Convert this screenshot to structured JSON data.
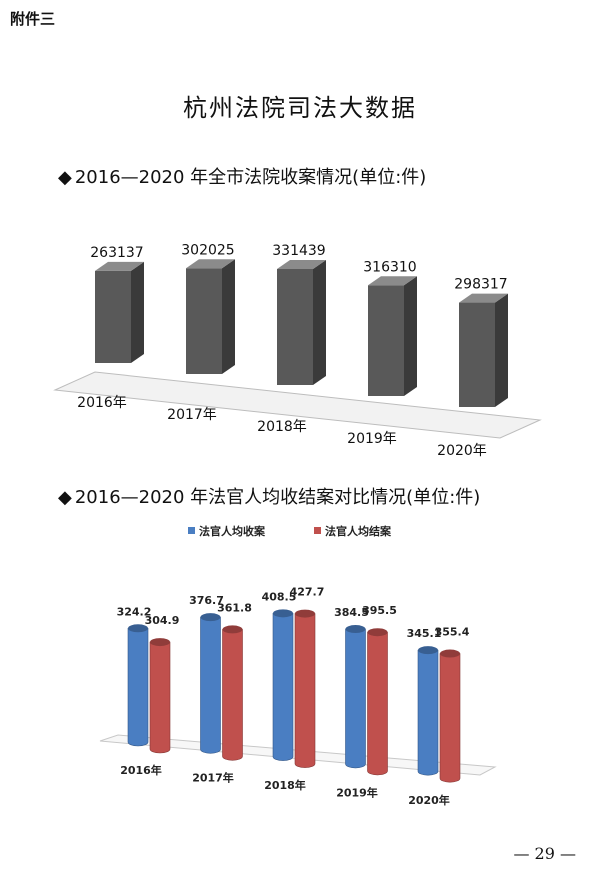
{
  "corner_label": "附件三",
  "page_title": "杭州法院司法大数据",
  "sections": [
    {
      "bullet": "◆",
      "heading": "2016—2020 年全市法院收案情况(单位:件)"
    },
    {
      "bullet": "◆",
      "heading": "2016—2020 年法官人均收结案对比情况(单位:件)"
    }
  ],
  "page_number": "— 29 —",
  "colors": {
    "gray_bar": "#595959",
    "blue_series": "#4a7ec2",
    "red_series": "#c0504d"
  },
  "chart_data": [
    {
      "type": "bar",
      "categories": [
        "2016年",
        "2017年",
        "2018年",
        "2019年",
        "2020年"
      ],
      "values": [
        263137,
        302025,
        331439,
        316310,
        298317
      ],
      "data_labels": [
        "263137",
        "302025",
        "331439",
        "316310",
        "298317"
      ],
      "title": "",
      "xlabel": "",
      "ylabel": "",
      "grid": false,
      "legend": "none"
    },
    {
      "type": "bar",
      "categories": [
        "2016年",
        "2017年",
        "2018年",
        "2019年",
        "2020年"
      ],
      "series": [
        {
          "name": "法官人均收案",
          "values": [
            324.2,
            376.7,
            408.5,
            384.5,
            345.1
          ],
          "labels": [
            "324.2",
            "376.7",
            "408.5",
            "384.5",
            "345.1"
          ]
        },
        {
          "name": "法官人均结案",
          "values": [
            304.9,
            361.8,
            427.7,
            395.5,
            355.4
          ],
          "labels": [
            "304.9",
            "361.8",
            "427.7",
            "395.5",
            "355.4"
          ]
        }
      ],
      "title": "",
      "xlabel": "",
      "ylabel": "",
      "grid": false,
      "legend": "top"
    }
  ]
}
